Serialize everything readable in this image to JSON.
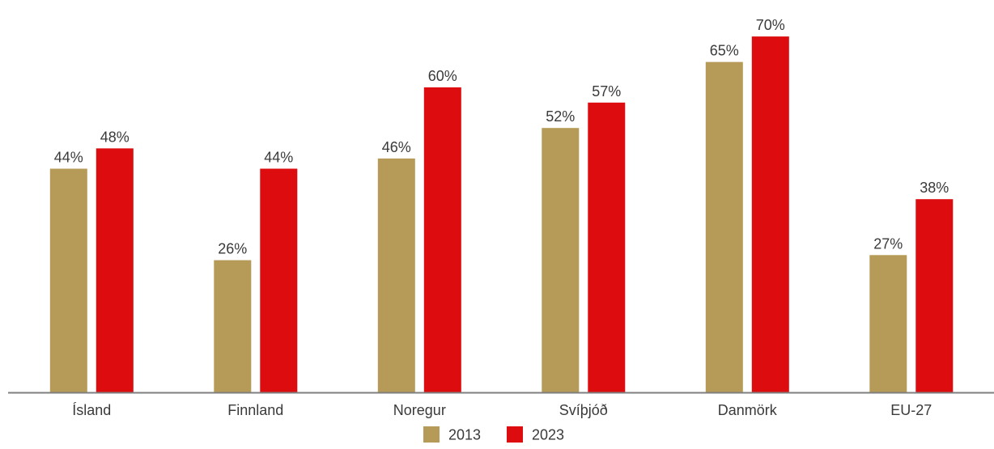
{
  "chart_data": {
    "type": "bar",
    "categories": [
      "Ísland",
      "Finnland",
      "Noregur",
      "Svíþjóð",
      "Danmörk",
      "EU-27"
    ],
    "series": [
      {
        "name": "2013",
        "values": [
          44,
          26,
          46,
          52,
          65,
          27
        ],
        "color": "#b59b57"
      },
      {
        "name": "2023",
        "values": [
          48,
          44,
          60,
          57,
          70,
          38
        ],
        "color": "#dd0c0f"
      }
    ],
    "value_suffix": "%",
    "ylim": [
      0,
      74
    ],
    "grid": false,
    "legend": "bottom-center",
    "axis_color": "#7f7f7f"
  }
}
